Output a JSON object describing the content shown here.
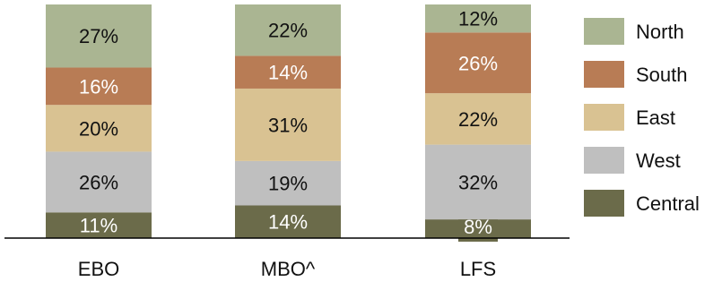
{
  "chart_data": {
    "type": "bar",
    "stacked": true,
    "normalized_percent": true,
    "categories": [
      "EBO",
      "MBO^",
      "LFS"
    ],
    "series": [
      {
        "name": "Central",
        "color": "#6b6b4a",
        "values": [
          11,
          14,
          8
        ],
        "labels": [
          "11%",
          "14%",
          "8%"
        ]
      },
      {
        "name": "West",
        "color": "#bfbfbf",
        "values": [
          26,
          19,
          32
        ],
        "labels": [
          "26%",
          "19%",
          "32%"
        ]
      },
      {
        "name": "East",
        "color": "#d9c292",
        "values": [
          20,
          31,
          22
        ],
        "labels": [
          "20%",
          "31%",
          "22%"
        ]
      },
      {
        "name": "South",
        "color": "#b87c55",
        "values": [
          16,
          14,
          26
        ],
        "labels": [
          "16%",
          "14%",
          "26%"
        ]
      },
      {
        "name": "North",
        "color": "#aab592",
        "values": [
          27,
          22,
          12
        ],
        "labels": [
          "27%",
          "22%",
          "12%"
        ]
      }
    ],
    "legend": {
      "placement": "right",
      "order": [
        "North",
        "South",
        "East",
        "West",
        "Central"
      ]
    },
    "title": "",
    "xlabel": "",
    "ylabel": "",
    "ylim": [
      0,
      100
    ],
    "grid": false
  }
}
